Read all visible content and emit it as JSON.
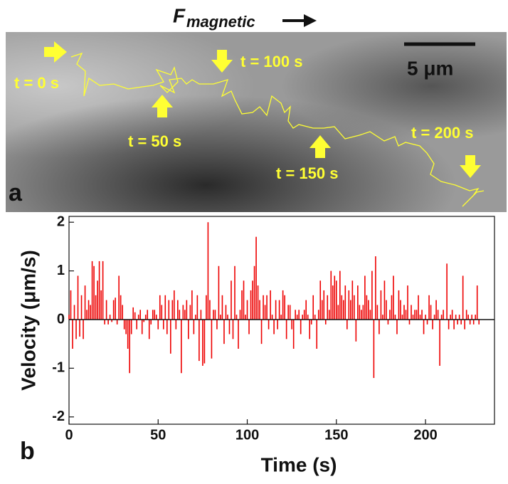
{
  "image_panel": {
    "panel_label": "a",
    "force_label": "F",
    "force_subscript": "magnetic",
    "scale_label": "5 μm",
    "time_labels": [
      "t = 0 s",
      "t = 50 s",
      "t = 100 s",
      "t = 150 s",
      "t = 200 s"
    ]
  },
  "chart_data": {
    "type": "bar",
    "panel_label": "b",
    "xlabel": "Time (s)",
    "ylabel": "Velocity (μm/s)",
    "color": "#ee0000",
    "xlim": [
      0,
      238.7
    ],
    "ylim": [
      -2.15,
      2.12
    ],
    "xticks": [
      0,
      50,
      100,
      150,
      200
    ],
    "yticks": [
      -2,
      -1,
      0,
      1,
      2
    ],
    "x": [
      0,
      1,
      2,
      3,
      4,
      5,
      6,
      7,
      8,
      9,
      10,
      11,
      12,
      13,
      14,
      15,
      16,
      17,
      18,
      19,
      20,
      21,
      22,
      23,
      24,
      25,
      26,
      27,
      28,
      29,
      30,
      31,
      32,
      33,
      34,
      35,
      36,
      37,
      38,
      39,
      40,
      41,
      42,
      43,
      44,
      45,
      46,
      47,
      48,
      49,
      50,
      51,
      52,
      53,
      54,
      55,
      56,
      57,
      58,
      59,
      60,
      61,
      62,
      63,
      64,
      65,
      66,
      67,
      68,
      69,
      70,
      71,
      72,
      73,
      74,
      75,
      76,
      77,
      78,
      79,
      80,
      81,
      82,
      83,
      84,
      85,
      86,
      87,
      88,
      89,
      90,
      91,
      92,
      93,
      94,
      95,
      96,
      97,
      98,
      99,
      100,
      101,
      102,
      103,
      104,
      105,
      106,
      107,
      108,
      109,
      110,
      111,
      112,
      113,
      114,
      115,
      116,
      117,
      118,
      119,
      120,
      121,
      122,
      123,
      124,
      125,
      126,
      127,
      128,
      129,
      130,
      131,
      132,
      133,
      134,
      135,
      136,
      137,
      138,
      139,
      140,
      141,
      142,
      143,
      144,
      145,
      146,
      147,
      148,
      149,
      150,
      151,
      152,
      153,
      154,
      155,
      156,
      157,
      158,
      159,
      160,
      161,
      162,
      163,
      164,
      165,
      166,
      167,
      168,
      169,
      170,
      171,
      172,
      173,
      174,
      175,
      176,
      177,
      178,
      179,
      180,
      181,
      182,
      183,
      184,
      185,
      186,
      187,
      188,
      189,
      190,
      191,
      192,
      193,
      194,
      195,
      196,
      197,
      198,
      199,
      200,
      201,
      202,
      203,
      204,
      205,
      206,
      207,
      208,
      209,
      210,
      211,
      212,
      213,
      214,
      215,
      216,
      217,
      218,
      219,
      220,
      221,
      222,
      223,
      224,
      225,
      226,
      227,
      228,
      229,
      230
    ],
    "values": [
      0.1,
      0.6,
      -0.6,
      0.3,
      -0.4,
      0.9,
      -0.35,
      0.5,
      -0.4,
      0.7,
      0.2,
      0.4,
      0.3,
      1.2,
      1.1,
      0.5,
      0.8,
      1.2,
      0.6,
      1.2,
      -0.1,
      0.4,
      -0.1,
      0.1,
      -0.05,
      0.4,
      0.45,
      -0.1,
      0.9,
      0.5,
      0.3,
      -0.2,
      -0.3,
      -0.6,
      -1.1,
      -0.3,
      0.25,
      0.15,
      -0.2,
      0.1,
      0.2,
      -0.3,
      -0.05,
      0.1,
      0.2,
      -0.4,
      -0.1,
      0.2,
      0.2,
      0.1,
      -0.2,
      0.5,
      0.3,
      -0.2,
      0.5,
      -0.3,
      0.4,
      -0.7,
      0.4,
      0.6,
      -0.2,
      0.4,
      0.2,
      -1.1,
      0.3,
      0.2,
      0.4,
      -0.4,
      0.3,
      0.6,
      -0.3,
      0.1,
      0.5,
      -0.85,
      0.2,
      -0.95,
      -0.9,
      0.5,
      2.0,
      0.4,
      -0.8,
      0.2,
      0.2,
      -0.2,
      1.1,
      0.1,
      0.5,
      -0.5,
      0.3,
      0.1,
      -0.3,
      0.8,
      -0.4,
      1.1,
      0.1,
      -0.6,
      0.2,
      0.6,
      0.8,
      0.1,
      0.4,
      -0.3,
      0.6,
      0.8,
      1.1,
      1.7,
      0.7,
      0.4,
      -0.5,
      0.5,
      0.3,
      0.5,
      -0.2,
      0.6,
      0.1,
      -0.3,
      0.4,
      -0.2,
      0.4,
      0.1,
      0.6,
      0.5,
      -0.4,
      0.3,
      0.3,
      -0.2,
      -0.6,
      0.2,
      0.1,
      0.2,
      -0.3,
      0.1,
      0.2,
      0.4,
      0.1,
      -0.4,
      -0.1,
      0.5,
      0.1,
      -0.6,
      0.2,
      0.8,
      0.4,
      0.6,
      -0.1,
      0.5,
      0.2,
      1.0,
      0.7,
      0.9,
      0.8,
      0.3,
      1.0,
      0.5,
      0.4,
      0.7,
      -0.2,
      0.6,
      0.4,
      0.8,
      0.5,
      -0.45,
      0.7,
      0.3,
      0.2,
      0.3,
      0.9,
      0.5,
      0.4,
      0.2,
      1.0,
      -1.2,
      1.3,
      0.3,
      -0.3,
      0.6,
      0.1,
      0.8,
      0.4,
      -0.1,
      0.2,
      0.5,
      0.9,
      0.1,
      -0.3,
      0.6,
      0.4,
      0.1,
      0.3,
      0.2,
      0.7,
      -0.1,
      0.3,
      0.1,
      0.2,
      0.2,
      0.5,
      0.1,
      0.2,
      -0.3,
      0.1,
      -0.1,
      0.5,
      0.3,
      -0.2,
      0.1,
      0.4,
      0.2,
      -0.95,
      0.1,
      0.2,
      0.0,
      1.15,
      -0.2,
      0.1,
      0.2,
      -0.2,
      0.1,
      -0.1,
      0.1,
      -0.1,
      0.9,
      -0.2,
      0.2,
      0.1,
      -0.1,
      0.1,
      -0.1,
      0.1,
      0.7,
      -0.1
    ]
  }
}
